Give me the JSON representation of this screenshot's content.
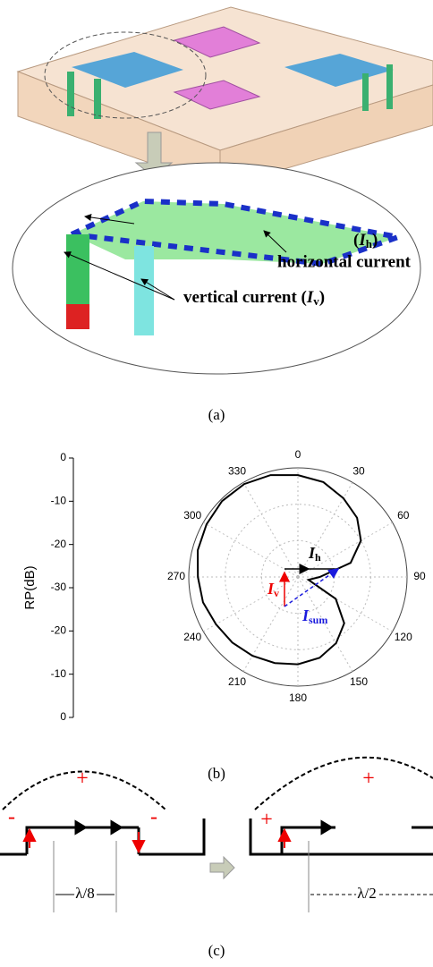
{
  "panel_a": {
    "horizontal_label": {
      "open": "(",
      "symbol": "I",
      "subscript": "h",
      "close": ")",
      "text": "horizontal current"
    },
    "vertical_label": {
      "text": "vertical current (",
      "symbol": "I",
      "subscript": "v",
      "close": ")"
    },
    "caption": "(a)"
  },
  "chart_data": {
    "type": "polar",
    "axis_label": "RP(dB)",
    "theta": [
      0,
      15,
      30,
      45,
      60,
      75,
      90,
      105,
      120,
      135,
      150,
      165,
      180,
      195,
      210,
      225,
      240,
      255,
      270,
      285,
      300,
      315,
      330,
      345
    ],
    "values": [
      -2,
      -3,
      -5,
      -7,
      -10,
      -15,
      -24,
      -27,
      -18,
      -12,
      -9,
      -7,
      -6,
      -5.5,
      -5,
      -4.5,
      -4,
      -3,
      -2.5,
      -1.5,
      -1,
      -0.5,
      -0.5,
      -1
    ],
    "rlim": [
      -30,
      0
    ],
    "rticks": [
      -30,
      -20,
      -10,
      0
    ],
    "thetaticks": [
      0,
      30,
      60,
      90,
      120,
      150,
      180,
      210,
      240,
      270,
      300,
      330
    ],
    "color": "#000000",
    "annotations": {
      "ih": {
        "symbol": "I",
        "subscript": "h"
      },
      "iv": {
        "symbol": "I",
        "subscript": "v"
      },
      "isum": {
        "symbol": "I",
        "subscript": "sum"
      }
    },
    "caption": "(b)"
  },
  "panel_c": {
    "left": {
      "top_sign": "+",
      "left_sign": "-",
      "right_sign": "-",
      "spacing": "λ/8"
    },
    "right": {
      "top_sign": "+",
      "left_sign": "+",
      "spacing": "λ/2"
    },
    "caption": "(c)"
  }
}
